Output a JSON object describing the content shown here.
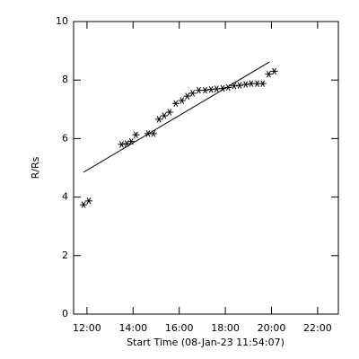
{
  "chart_data": {
    "type": "scatter",
    "xlabel": "Start Time (08-Jan-23 11:54:07)",
    "ylabel": "R/Rs",
    "xlim": [
      11.42,
      22.9
    ],
    "xticks": [
      {
        "value": 12,
        "label": "12:00"
      },
      {
        "value": 14,
        "label": "14:00"
      },
      {
        "value": 16,
        "label": "16:00"
      },
      {
        "value": 18,
        "label": "18:00"
      },
      {
        "value": 20,
        "label": "20:00"
      },
      {
        "value": 22,
        "label": "22:00"
      }
    ],
    "ylim": [
      0,
      10
    ],
    "yticks": [
      0,
      2,
      4,
      6,
      8,
      10
    ],
    "color": "#000000",
    "series": [
      {
        "marker": "asterisk",
        "x": [
          11.85,
          12.08,
          13.5,
          13.73,
          13.92,
          14.12,
          14.65,
          14.88,
          15.12,
          15.35,
          15.58,
          15.85,
          16.12,
          16.35,
          16.58,
          16.85,
          17.12,
          17.38,
          17.62,
          17.88,
          18.12,
          18.38,
          18.62,
          18.88,
          19.12,
          19.38,
          19.62,
          19.88,
          20.12
        ],
        "values": [
          3.74,
          3.87,
          5.8,
          5.83,
          5.9,
          6.13,
          6.17,
          6.17,
          6.66,
          6.78,
          6.9,
          7.2,
          7.3,
          7.45,
          7.55,
          7.65,
          7.65,
          7.68,
          7.7,
          7.72,
          7.75,
          7.8,
          7.82,
          7.85,
          7.88,
          7.88,
          7.88,
          8.2,
          8.3
        ]
      },
      {
        "marker": "line",
        "x": [
          11.85,
          19.92
        ],
        "values": [
          4.85,
          8.62
        ]
      }
    ]
  }
}
